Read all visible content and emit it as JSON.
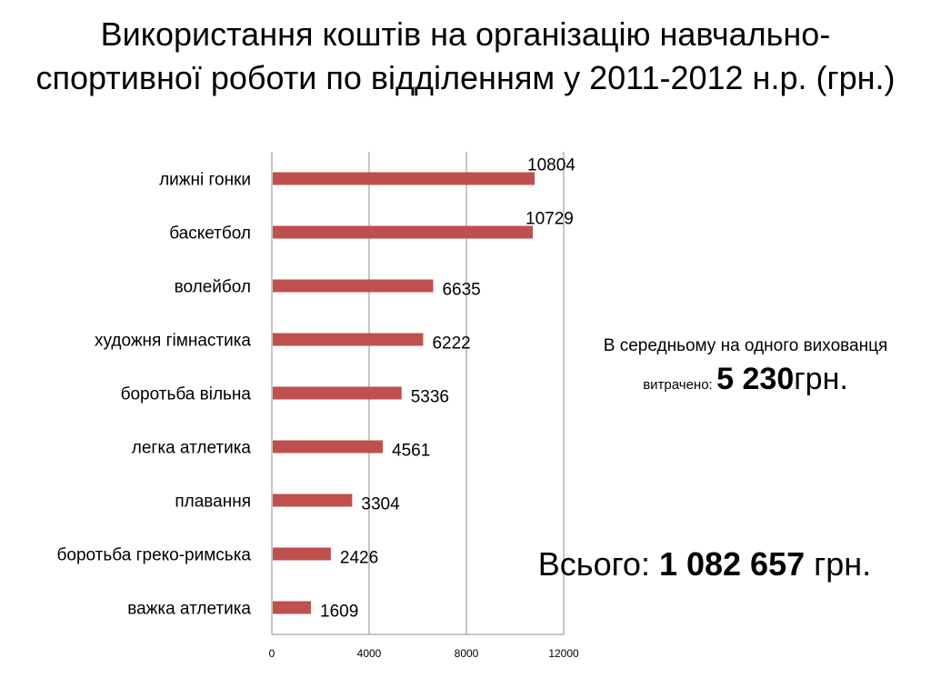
{
  "slide": {
    "title": "Використання коштів на організацію навчально-спортивної роботи по відділенням у 2011-2012 н.р. (грн.)"
  },
  "chart_data": {
    "type": "bar",
    "orientation": "horizontal",
    "categories": [
      "лижні гонки",
      "баскетбол",
      "волейбол",
      "художня гімнастика",
      "боротьба вільна",
      "легка атлетика",
      "плавання",
      "боротьба греко-римська",
      "важка атлетика"
    ],
    "values": [
      10804,
      10729,
      6635,
      6222,
      5336,
      4561,
      3304,
      2426,
      1609
    ],
    "value_labels": [
      "10804",
      "10729",
      "6635",
      "6222",
      "5336",
      "4561",
      "3304",
      "2426",
      "1609"
    ],
    "xlim": [
      0,
      12000
    ],
    "xticks": [
      0,
      4000,
      8000,
      12000
    ],
    "xtick_labels": [
      "0",
      "4000",
      "8000",
      "12000"
    ],
    "grid": true,
    "bar_color": "#C0504D"
  },
  "average": {
    "line1": "В середньому на одного вихованця",
    "prefix": "витрачено:",
    "amount": "5 230",
    "unit": "грн."
  },
  "total": {
    "label": "Всього:",
    "amount": "1 082 657",
    "unit": "грн."
  }
}
